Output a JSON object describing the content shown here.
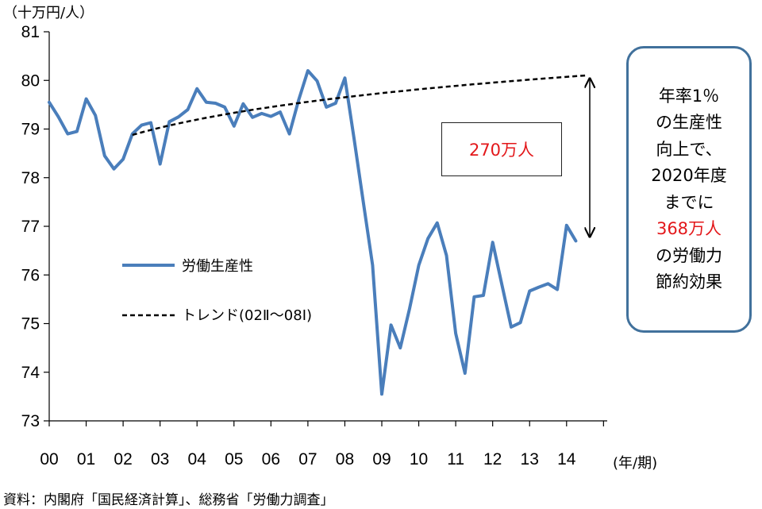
{
  "colors": {
    "series": "#4a7ebb",
    "trend": "#000000",
    "accent_red": "#e3171a",
    "callout_border": "#41719c"
  },
  "chart_data": {
    "type": "line",
    "unit_label": "（十万円/人）",
    "xlabel": "(年/期)",
    "ylim": [
      73,
      81
    ],
    "yticks": [
      "73",
      "74",
      "75",
      "76",
      "77",
      "78",
      "79",
      "80",
      "81"
    ],
    "xticks": [
      "00",
      "01",
      "02",
      "03",
      "04",
      "05",
      "06",
      "07",
      "08",
      "09",
      "10",
      "11",
      "12",
      "13",
      "14"
    ],
    "x_start": 2000.0,
    "x_step": 0.25,
    "series": [
      {
        "name": "労働生産性",
        "style": "solid",
        "values": [
          79.55,
          79.25,
          78.9,
          78.95,
          79.62,
          79.28,
          78.45,
          78.18,
          78.38,
          78.9,
          79.08,
          79.13,
          78.28,
          79.15,
          79.25,
          79.4,
          79.83,
          79.55,
          79.53,
          79.45,
          79.06,
          79.52,
          79.24,
          79.32,
          79.26,
          79.35,
          78.9,
          79.6,
          80.2,
          79.99,
          79.45,
          79.53,
          80.05,
          78.8,
          77.5,
          76.2,
          73.55,
          74.97,
          74.5,
          75.3,
          76.2,
          76.75,
          77.07,
          76.4,
          74.8,
          73.98,
          75.55,
          75.58,
          76.67,
          75.8,
          74.93,
          75.02,
          75.67,
          75.75,
          75.82,
          75.7,
          77.02,
          76.7
        ]
      },
      {
        "name": "トレンド(02Ⅱ～08Ⅰ)",
        "style": "dashed",
        "x_start": 2002.25,
        "x_end": 2014.5,
        "y_start": 78.88,
        "y_end": 80.1
      }
    ],
    "annotations": [
      {
        "text": "270万人"
      }
    ]
  },
  "callout": {
    "lines": [
      "年率1％",
      "の生産性",
      "向上で、",
      "2020年度",
      "までに",
      "368万人",
      "の労働力",
      "節約効果"
    ],
    "highlight": "368万人"
  },
  "source": "資料：内閣府「国民経済計算」、総務省「労働力調査」"
}
